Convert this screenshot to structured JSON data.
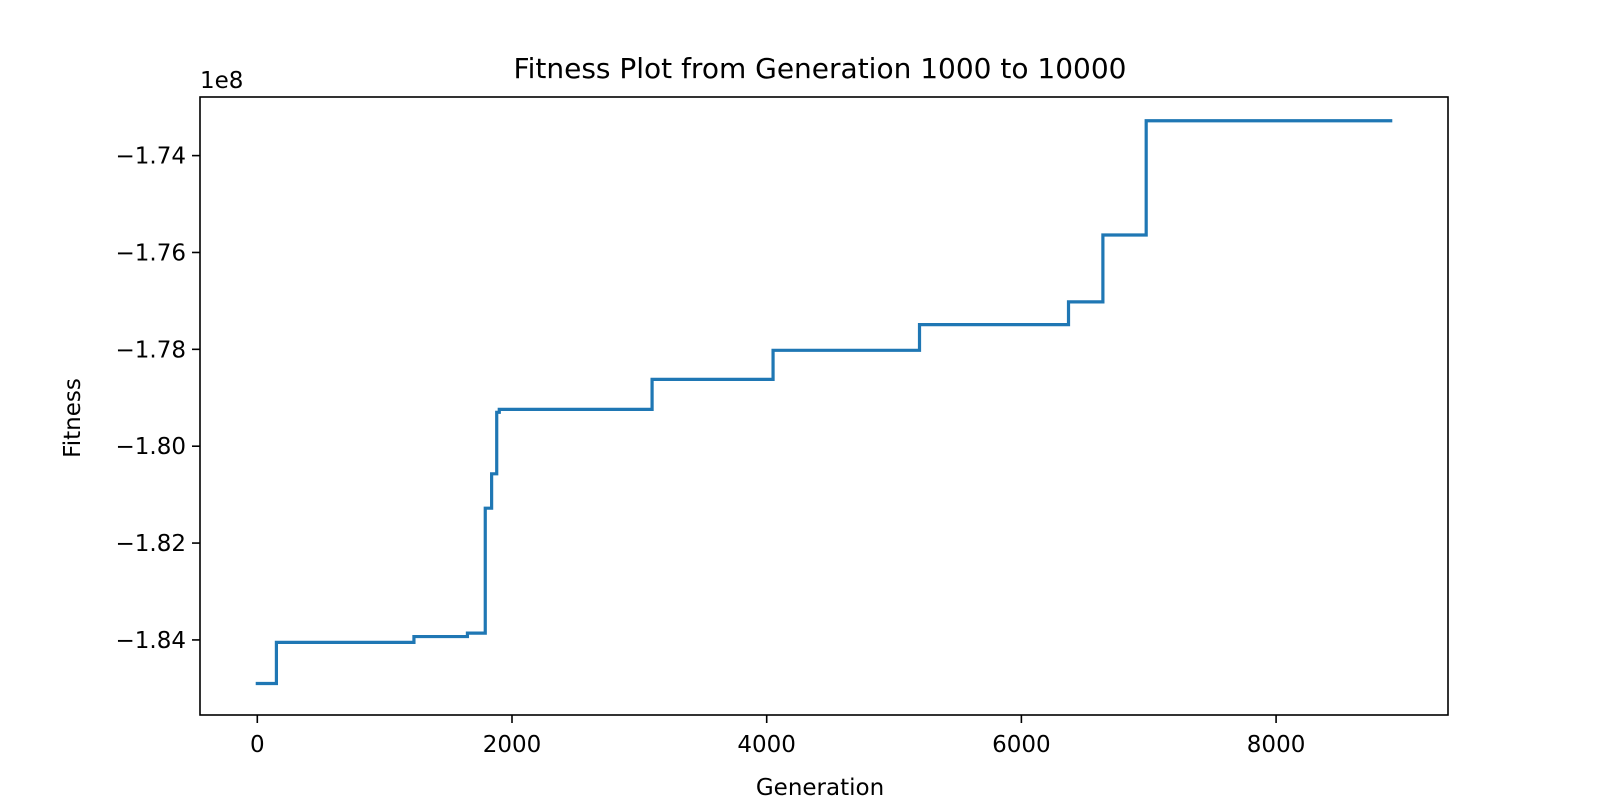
{
  "chart_data": {
    "type": "line",
    "title": "Fitness Plot from Generation 1000 to 10000",
    "xlabel": "Generation",
    "ylabel": "Fitness",
    "y_offset_label": "1e8",
    "xlim": [
      -450,
      9350
    ],
    "ylim": [
      -1.8555,
      -1.7279
    ],
    "x_ticks": [
      0,
      2000,
      4000,
      6000,
      8000
    ],
    "x_tick_labels": [
      "0",
      "2000",
      "4000",
      "6000",
      "8000"
    ],
    "y_ticks": [
      -1.84,
      -1.82,
      -1.8,
      -1.78,
      -1.76,
      -1.74
    ],
    "y_tick_labels": [
      "−1.84",
      "−1.82",
      "−1.80",
      "−1.78",
      "−1.76",
      "−1.74"
    ],
    "grid": false,
    "step": "post",
    "series": [
      {
        "color": "#1f77b4",
        "x": [
          0,
          150,
          1230,
          1650,
          1790,
          1840,
          1880,
          1900,
          3100,
          4050,
          5200,
          6370,
          6640,
          6980,
          8900
        ],
        "y": [
          -1.849,
          -1.8405,
          -1.8393,
          -1.8386,
          -1.8128,
          -1.8057,
          -1.793,
          -1.7924,
          -1.7862,
          -1.7802,
          -1.7749,
          -1.7702,
          -1.7564,
          -1.7328,
          -1.7328
        ]
      }
    ]
  }
}
